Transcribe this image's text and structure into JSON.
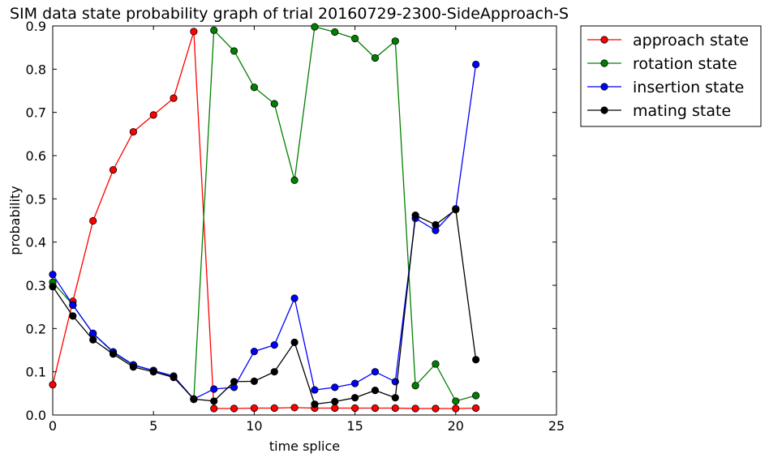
{
  "chart_data": {
    "type": "line",
    "title": "SIM data state probability graph of trial 20160729-2300-SideApproach-S",
    "xlabel": "time splice",
    "ylabel": "probability",
    "xlim": [
      0,
      25
    ],
    "ylim": [
      0,
      0.9
    ],
    "xticks": [
      0,
      5,
      10,
      15,
      20,
      25
    ],
    "yticks": [
      0.0,
      0.1,
      0.2,
      0.3,
      0.4,
      0.5,
      0.6,
      0.7,
      0.8,
      0.9
    ],
    "grid": false,
    "legend_position": "outside-top-right",
    "x": [
      0,
      1,
      2,
      3,
      4,
      5,
      6,
      7,
      8,
      9,
      10,
      11,
      12,
      13,
      14,
      15,
      16,
      17,
      18,
      19,
      20,
      21
    ],
    "series": [
      {
        "name": "approach state",
        "color": "#ff0000",
        "values": [
          0.07,
          0.263,
          0.449,
          0.567,
          0.655,
          0.694,
          0.733,
          0.887,
          0.015,
          0.015,
          0.016,
          0.016,
          0.017,
          0.016,
          0.016,
          0.016,
          0.016,
          0.016,
          0.015,
          0.015,
          0.015,
          0.016
        ]
      },
      {
        "name": "rotation state",
        "color": "#008000",
        "values": [
          0.307,
          0.255,
          0.188,
          0.145,
          0.115,
          0.103,
          0.089,
          0.036,
          0.89,
          0.842,
          0.758,
          0.72,
          0.543,
          0.898,
          0.886,
          0.871,
          0.826,
          0.865,
          0.068,
          0.118,
          0.032,
          0.045
        ]
      },
      {
        "name": "insertion state",
        "color": "#0000ff",
        "values": [
          0.325,
          0.254,
          0.189,
          0.146,
          0.116,
          0.103,
          0.09,
          0.037,
          0.06,
          0.064,
          0.147,
          0.162,
          0.27,
          0.058,
          0.064,
          0.073,
          0.1,
          0.077,
          0.455,
          0.427,
          0.477,
          0.811
        ]
      },
      {
        "name": "mating state",
        "color": "#000000",
        "values": [
          0.297,
          0.229,
          0.174,
          0.141,
          0.111,
          0.1,
          0.087,
          0.037,
          0.032,
          0.077,
          0.078,
          0.1,
          0.168,
          0.025,
          0.031,
          0.04,
          0.057,
          0.04,
          0.462,
          0.44,
          0.475,
          0.128
        ]
      }
    ]
  }
}
